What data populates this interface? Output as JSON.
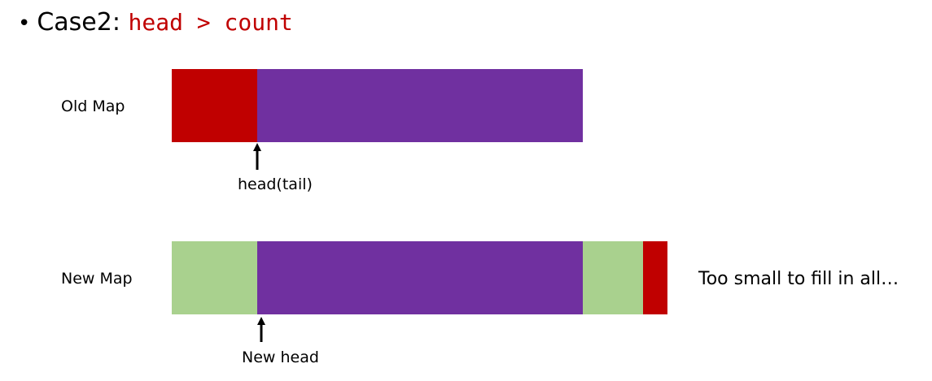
{
  "heading": {
    "bullet": "•",
    "prefix": "Case2: ",
    "code": "head > count"
  },
  "old_map": {
    "label": "Old Map",
    "pointer_label": "head(tail)"
  },
  "new_map": {
    "label": "New Map",
    "pointer_label": "New head"
  },
  "note": "Too small to fill in all…",
  "colors": {
    "red": "#c00000",
    "purple": "#7030a0",
    "green": "#a9d18e"
  },
  "icons": {
    "pointer": "up-arrow-icon"
  }
}
